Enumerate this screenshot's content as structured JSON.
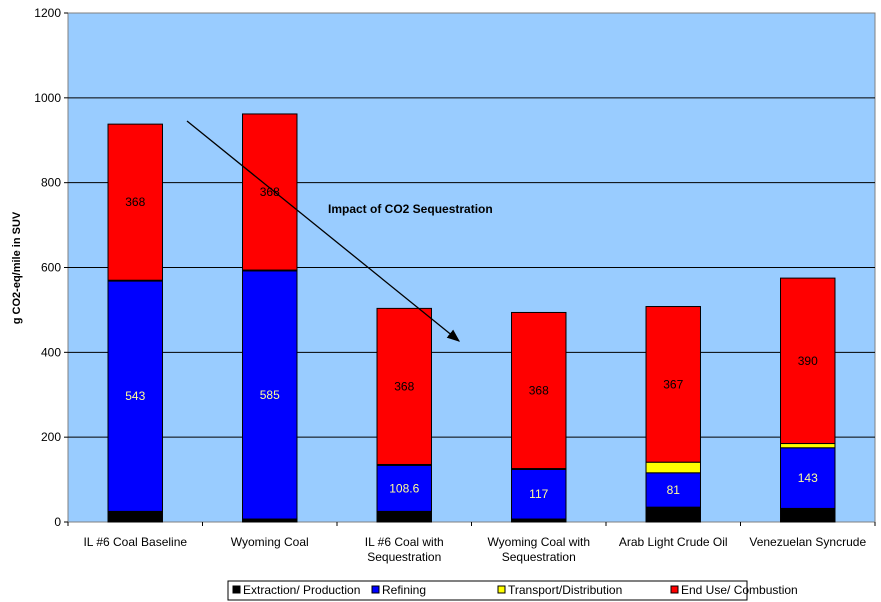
{
  "chart_data": {
    "type": "bar",
    "stacked": true,
    "title": "",
    "xlabel": "",
    "ylabel": "g CO2-eq/mile in SUV",
    "ylim": [
      0,
      1200
    ],
    "yticks": [
      "0",
      "200",
      "400",
      "600",
      "800",
      "1000",
      "1200"
    ],
    "grid": true,
    "legend_position": "bottom",
    "plot_background": "#99CCFF",
    "categories": [
      [
        "IL #6 Coal Baseline"
      ],
      [
        "Wyoming Coal"
      ],
      [
        "IL #6 Coal with",
        "Sequestration"
      ],
      [
        "Wyoming Coal with",
        "Sequestration"
      ],
      [
        "Arab Light Crude Oil"
      ],
      [
        "Venezuelan Syncrude"
      ]
    ],
    "series": [
      {
        "name": "Extraction/ Production",
        "color": "#000000",
        "values": [
          25,
          7,
          25,
          7,
          35,
          32
        ]
      },
      {
        "name": "Refining",
        "color": "#0000FF",
        "values": [
          543,
          585,
          108.6,
          117,
          81,
          143
        ]
      },
      {
        "name": "Transport/Distribution",
        "color": "#FFFF00",
        "values": [
          2,
          2,
          2,
          2,
          25,
          10
        ]
      },
      {
        "name": "End Use/ Combustion",
        "color": "#FF0000",
        "values": [
          368,
          368,
          368,
          368,
          367,
          390
        ]
      }
    ],
    "data_labels": {
      "Refining": {
        "text": [
          "543",
          "585",
          "108.6",
          "117",
          "81",
          "143"
        ],
        "color": "#FFFF99"
      },
      "End Use/ Combustion": {
        "text": [
          "368",
          "368",
          "368",
          "368",
          "367",
          "390"
        ],
        "color": "#000000"
      }
    },
    "annotation": {
      "text": "Impact of CO2 Sequestration"
    }
  }
}
